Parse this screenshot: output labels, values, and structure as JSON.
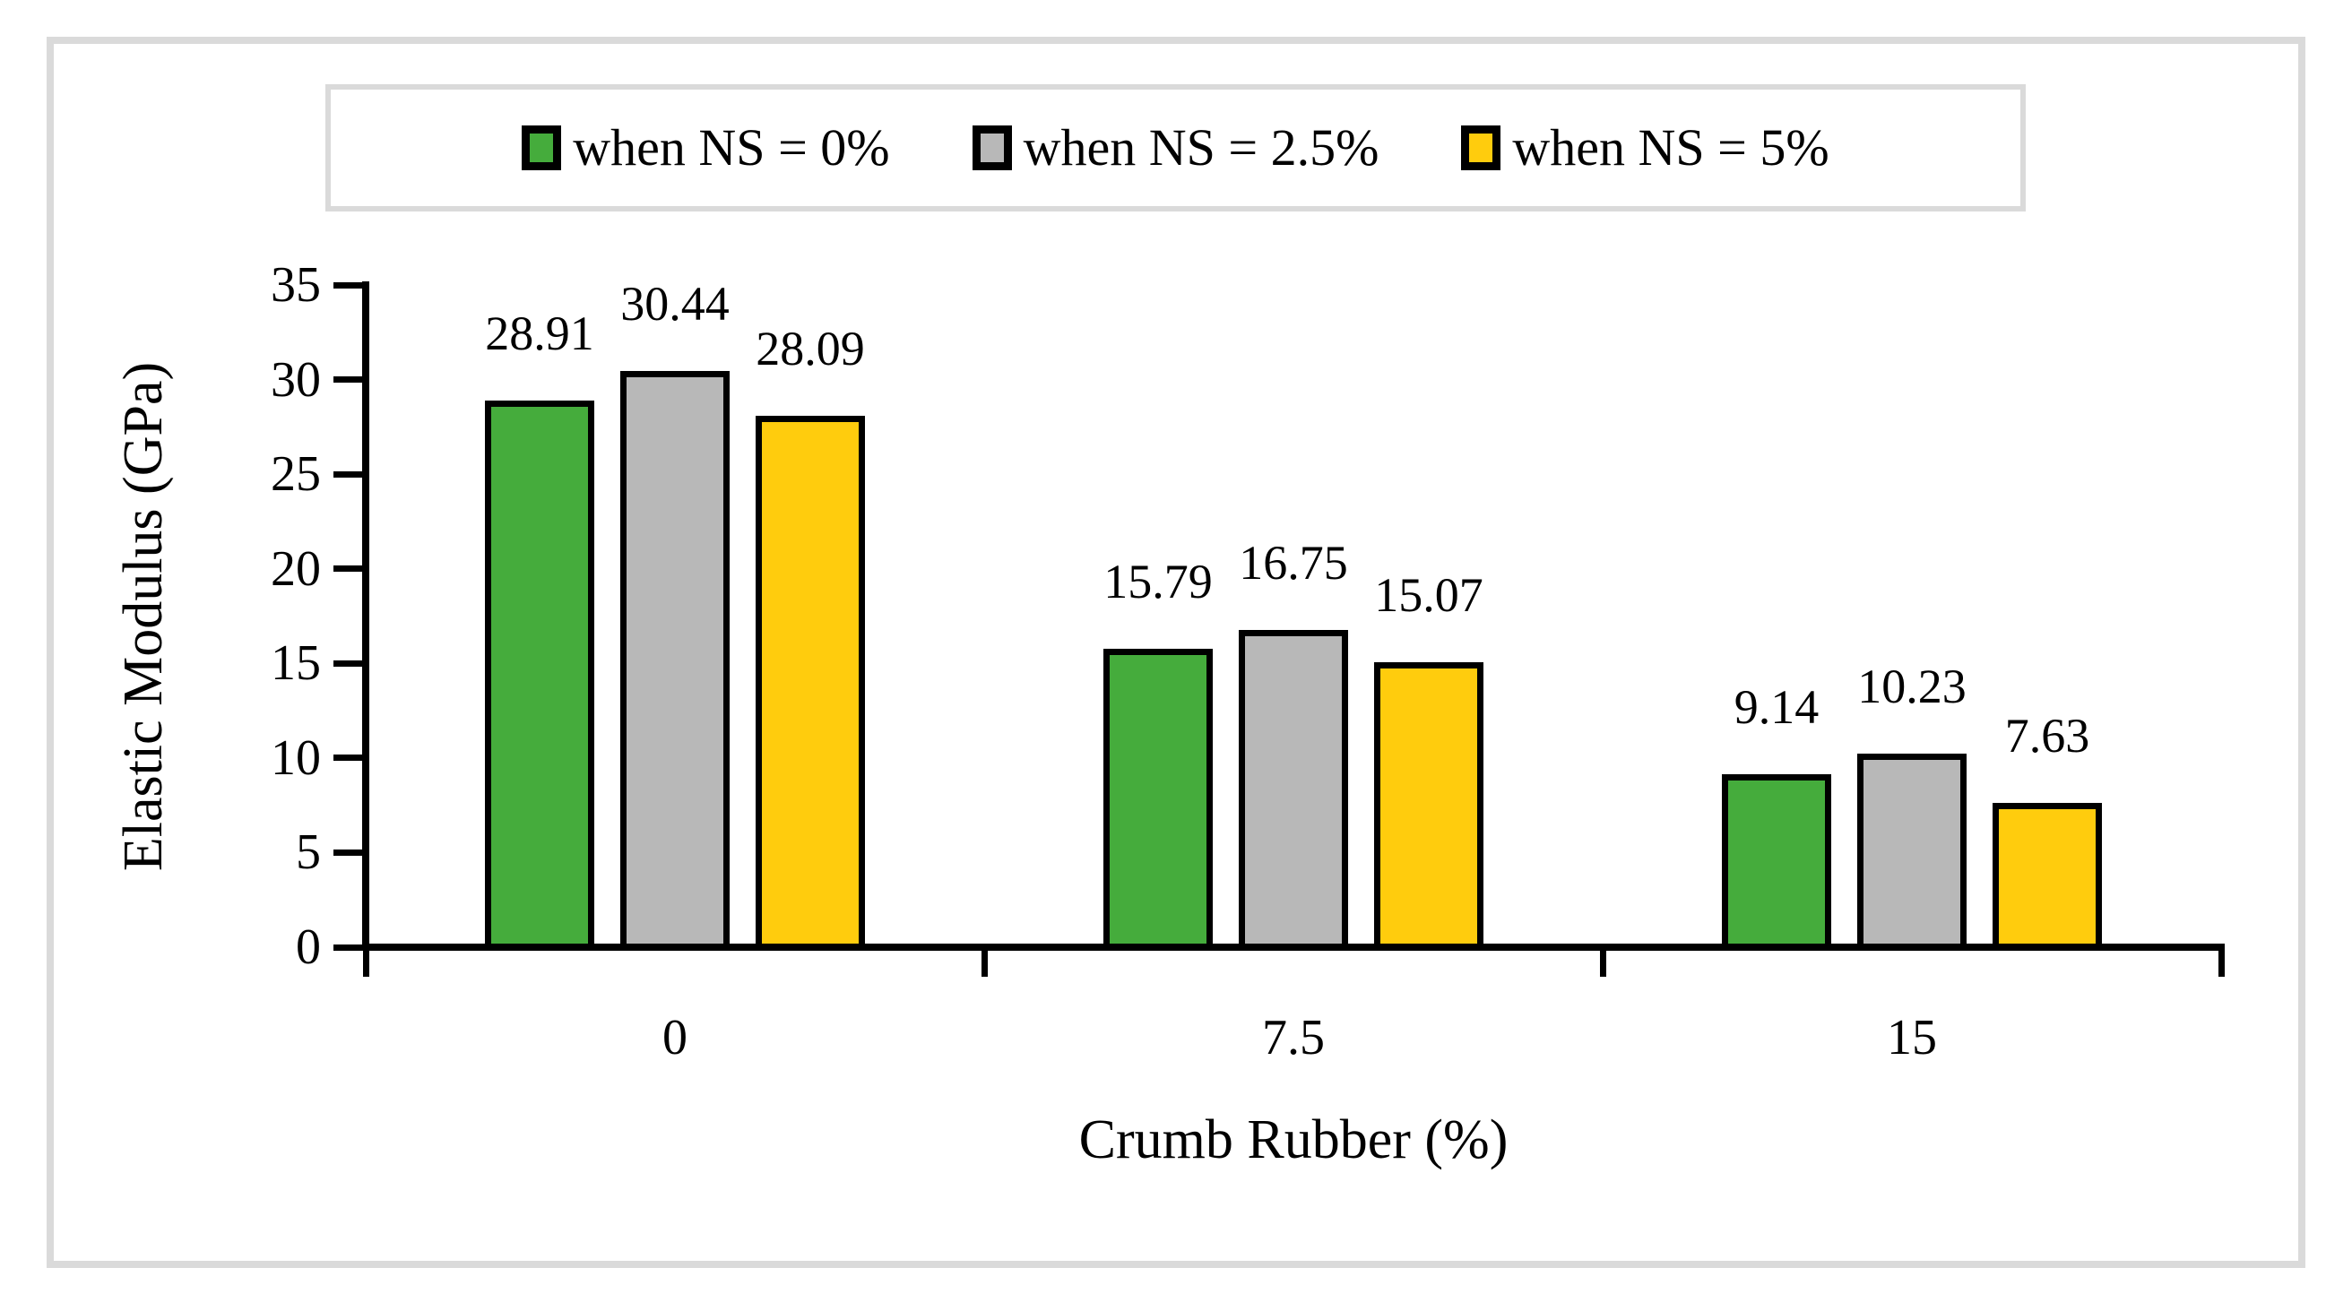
{
  "chart_data": {
    "type": "bar",
    "title": "",
    "xlabel": "Crumb Rubber (%)",
    "ylabel": "Elastic Modulus (GPa)",
    "categories": [
      "0",
      "7.5",
      "15"
    ],
    "series": [
      {
        "name": "when NS = 0%",
        "color": "#45AC3C",
        "values": [
          28.91,
          15.79,
          9.14
        ]
      },
      {
        "name": "when NS = 2.5%",
        "color": "#B8B8B8",
        "values": [
          30.44,
          16.75,
          10.23
        ]
      },
      {
        "name": "when NS = 5%",
        "color": "#FFCC0D",
        "values": [
          28.09,
          15.07,
          7.63
        ]
      }
    ],
    "yticks": [
      0,
      5,
      10,
      15,
      20,
      25,
      30,
      35
    ],
    "ylim": [
      0,
      35
    ],
    "legend_position": "top",
    "grid": false,
    "data_labels": true,
    "bar_outline_color": "#000000",
    "frame_color": "#DADADA",
    "value_label_format": "2-decimals"
  }
}
